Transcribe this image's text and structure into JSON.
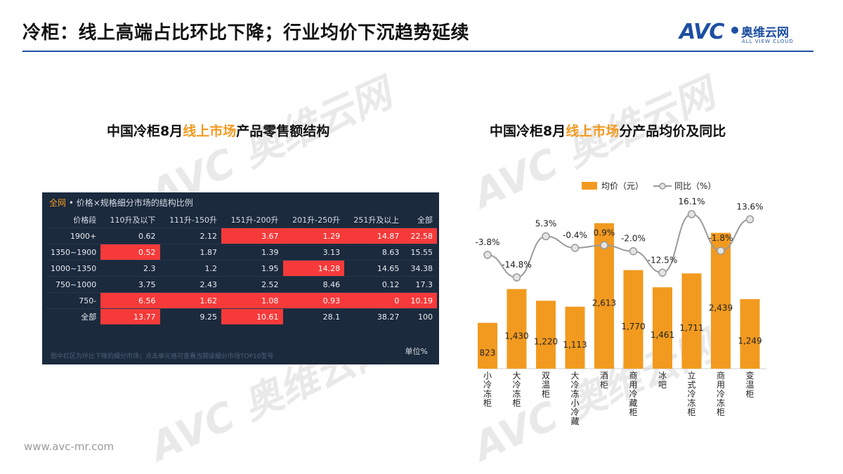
{
  "title": "冷柜：线上高端占比环比下降；行业均价下沉趋势延续",
  "logo": {
    "brand": "AVC",
    "cn": "奥维云网",
    "en": "ALL VIEW CLOUD"
  },
  "watermark": {
    "brand": "AVC",
    "cn": "奥维云网",
    "en": "ALL VIEW CLOUD"
  },
  "left": {
    "subtitle_pre": "中国冷柜8月",
    "subtitle_hl": "线上市场",
    "subtitle_post": "产品零售额结构",
    "caption_all": "全网",
    "caption_rest": " • 价格×规格细分市场的结构比例",
    "headers": [
      "价格段",
      "110升及以下",
      "111升-150升",
      "151升-200升",
      "201升-250升",
      "251升及以上",
      "全部"
    ],
    "rows": [
      {
        "label": "1900+",
        "cells": [
          "0.62",
          "2.12",
          "3.67",
          "1.29",
          "14.87",
          "22.58"
        ],
        "red": [
          false,
          false,
          true,
          true,
          true,
          true
        ]
      },
      {
        "label": "1350~1900",
        "cells": [
          "0.52",
          "1.87",
          "1.39",
          "3.13",
          "8.63",
          "15.55"
        ],
        "red": [
          true,
          false,
          false,
          false,
          false,
          false
        ]
      },
      {
        "label": "1000~1350",
        "cells": [
          "2.3",
          "1.2",
          "1.95",
          "14.28",
          "14.65",
          "34.38"
        ],
        "red": [
          false,
          false,
          false,
          true,
          false,
          false
        ]
      },
      {
        "label": "750~1000",
        "cells": [
          "3.75",
          "2.43",
          "2.52",
          "8.46",
          "0.12",
          "17.3"
        ],
        "red": [
          false,
          false,
          false,
          false,
          false,
          false
        ]
      },
      {
        "label": "750-",
        "cells": [
          "6.56",
          "1.62",
          "1.08",
          "0.93",
          "0",
          "10.19"
        ],
        "red": [
          true,
          true,
          true,
          true,
          true,
          true
        ]
      },
      {
        "label": "全部",
        "cells": [
          "13.77",
          "9.25",
          "10.61",
          "28.1",
          "38.27",
          "100"
        ],
        "red": [
          true,
          false,
          true,
          false,
          false,
          false
        ]
      }
    ],
    "note": "图中红区为环比下降的细分市场；点击单元格可查看当期该细分市场TOP10型号",
    "unit": "单位%"
  },
  "right": {
    "subtitle_pre": "中国冷柜8月",
    "subtitle_hl": "线上市场",
    "subtitle_post": "分产品均价及同比"
  },
  "colors": {
    "bar": "#f29a1f",
    "line": "#9a9a9a",
    "table_bg": "#1b2a3d",
    "table_red": "#f63a3a",
    "accent": "#1e4fa1"
  },
  "footer": {
    "url": "www.avc-mr.com"
  },
  "chart_data": {
    "type": "bar",
    "categories": [
      "小冷冻柜",
      "大冷冻柜",
      "双温柜",
      "大冷冻小冷藏",
      "酒柜",
      "商用冷藏柜",
      "冰吧",
      "立式冷冻柜",
      "商用冷冻柜",
      "变温柜"
    ],
    "series": [
      {
        "name": "均价（元）",
        "type": "bar",
        "values": [
          823,
          1430,
          1220,
          1113,
          2613,
          1770,
          1461,
          1711,
          2439,
          1249
        ],
        "labels": [
          "823",
          "1,430",
          "1,220",
          "1,113",
          "2,613",
          "1,770",
          "1,461",
          "1,711",
          "2,439",
          "1,249"
        ]
      },
      {
        "name": "同比（%）",
        "type": "line",
        "values": [
          -3.8,
          -14.8,
          5.3,
          -0.4,
          0.9,
          -2.0,
          -12.5,
          16.1,
          -1.8,
          13.6
        ],
        "labels": [
          "-3.8%",
          "-14.8%",
          "5.3%",
          "-0.4%",
          "0.9%",
          "-2.0%",
          "-12.5%",
          "16.1%",
          "-1.8%",
          "13.6%"
        ]
      }
    ],
    "legend": "top",
    "grid": false
  }
}
